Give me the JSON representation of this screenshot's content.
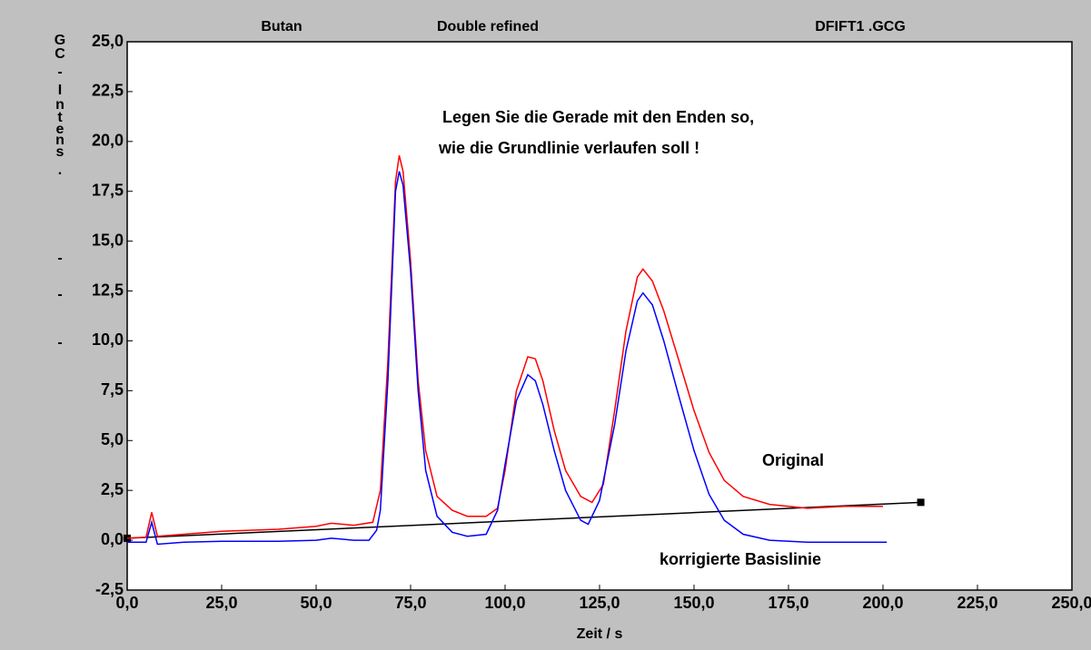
{
  "chart_data": {
    "type": "line",
    "header": [
      "Butan",
      "Double refined",
      "DFIFT1  .GCG"
    ],
    "annotation": [
      "Legen Sie die Gerade mit den Enden so,",
      "wie die Grundlinie verlaufen soll !"
    ],
    "xlabel": "Zeit / s",
    "ylabel": "GC-Intens.---",
    "xlim": [
      0,
      250
    ],
    "ylim": [
      -2.5,
      25
    ],
    "xticks": [
      {
        "value": 0,
        "label": "0,0"
      },
      {
        "value": 25,
        "label": "25,0"
      },
      {
        "value": 50,
        "label": "50,0"
      },
      {
        "value": 75,
        "label": "75,0"
      },
      {
        "value": 100,
        "label": "100,0"
      },
      {
        "value": 125,
        "label": "125,0"
      },
      {
        "value": 150,
        "label": "150,0"
      },
      {
        "value": 175,
        "label": "175,0"
      },
      {
        "value": 200,
        "label": "200,0"
      },
      {
        "value": 225,
        "label": "225,0"
      },
      {
        "value": 250,
        "label": "250,0"
      }
    ],
    "yticks": [
      {
        "value": -2.5,
        "label": "-2,5"
      },
      {
        "value": 0,
        "label": "0,0"
      },
      {
        "value": 2.5,
        "label": "2,5"
      },
      {
        "value": 5,
        "label": "5,0"
      },
      {
        "value": 7.5,
        "label": "7,5"
      },
      {
        "value": 10,
        "label": "10,0"
      },
      {
        "value": 12.5,
        "label": "12,5"
      },
      {
        "value": 15,
        "label": "15,0"
      },
      {
        "value": 17.5,
        "label": "17,5"
      },
      {
        "value": 20,
        "label": "20,0"
      },
      {
        "value": 22.5,
        "label": "22,5"
      },
      {
        "value": 25,
        "label": "25,0"
      }
    ],
    "series": [
      {
        "name": "Original",
        "color": "#ff0000",
        "x": [
          0,
          5,
          6.5,
          8,
          15,
          25,
          40,
          50,
          54,
          60,
          65,
          67,
          69,
          71,
          72,
          73,
          75,
          77,
          79,
          82,
          86,
          90,
          95,
          98,
          100,
          103,
          106,
          108,
          110,
          113,
          116,
          120,
          123,
          126,
          129,
          132,
          135,
          136.5,
          139,
          142,
          146,
          150,
          154,
          158,
          163,
          170,
          180,
          190,
          200
        ],
        "values": [
          0.1,
          0.15,
          1.4,
          0.2,
          0.3,
          0.45,
          0.55,
          0.7,
          0.85,
          0.75,
          0.9,
          2.5,
          9,
          18,
          19.3,
          18.5,
          14,
          8,
          4.5,
          2.2,
          1.5,
          1.2,
          1.2,
          1.6,
          3.5,
          7.5,
          9.2,
          9.1,
          8,
          5.5,
          3.5,
          2.2,
          1.9,
          2.8,
          6.5,
          10.5,
          13.2,
          13.6,
          13,
          11.5,
          9,
          6.5,
          4.4,
          3,
          2.2,
          1.8,
          1.6,
          1.7,
          1.7
        ]
      },
      {
        "name": "korrigierte Basislinie",
        "color": "#0000ff",
        "x": [
          0,
          5,
          6.5,
          8,
          15,
          25,
          40,
          50,
          54,
          60,
          64,
          66,
          67,
          69,
          71,
          72,
          73,
          75,
          77,
          79,
          82,
          86,
          90,
          95,
          98,
          100,
          103,
          106,
          108,
          110,
          113,
          116,
          120,
          122,
          125,
          129,
          132,
          135,
          136.5,
          139,
          142,
          146,
          150,
          154,
          158,
          163,
          170,
          180,
          190,
          201
        ],
        "values": [
          -0.1,
          -0.1,
          0.9,
          -0.2,
          -0.1,
          -0.05,
          -0.05,
          0,
          0.1,
          0,
          0,
          0.5,
          1.5,
          8,
          17.5,
          18.5,
          17.8,
          13.5,
          7.5,
          3.5,
          1.2,
          0.4,
          0.2,
          0.3,
          1.5,
          3.8,
          7,
          8.3,
          8,
          6.8,
          4.5,
          2.5,
          1.0,
          0.8,
          2.0,
          5.8,
          9.5,
          12,
          12.4,
          11.8,
          10,
          7.2,
          4.5,
          2.3,
          1.0,
          0.3,
          0,
          -0.1,
          -0.1,
          -0.1
        ]
      }
    ],
    "baseline": {
      "color": "#000000",
      "x": [
        0,
        210
      ],
      "values": [
        0.1,
        1.9
      ]
    }
  }
}
